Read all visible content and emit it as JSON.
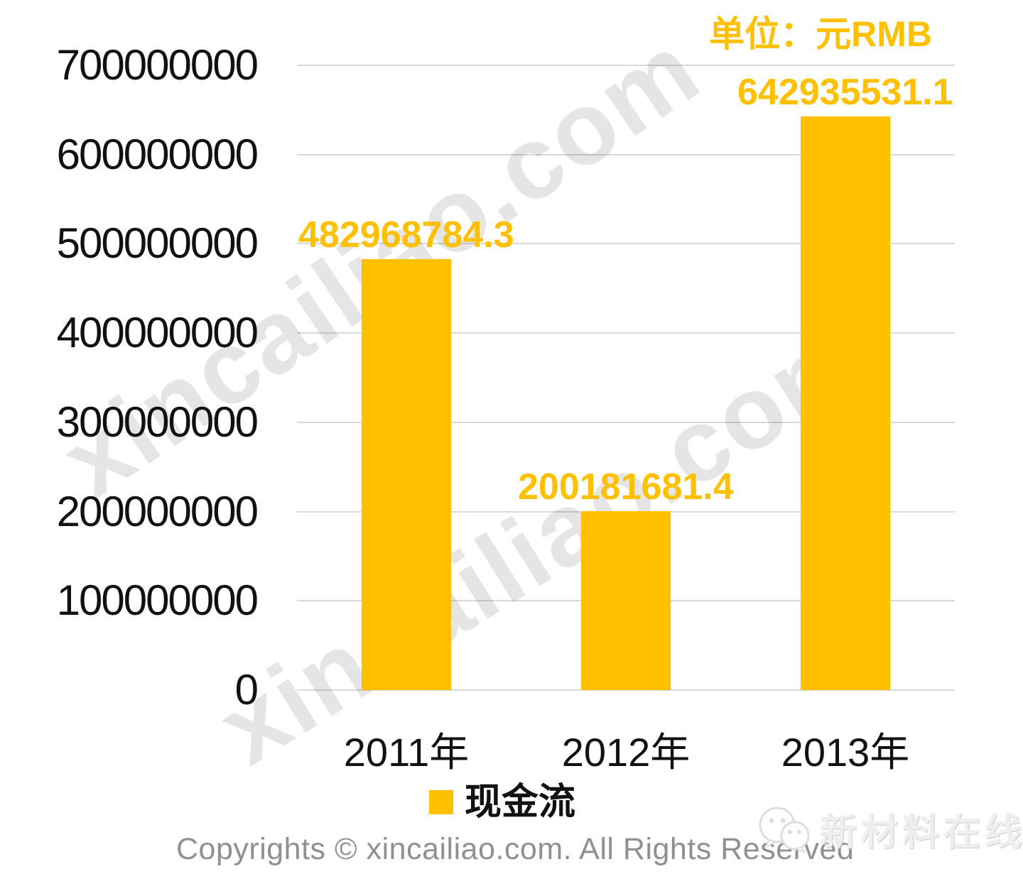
{
  "page": {
    "background": "#ffffff"
  },
  "header": {
    "unit_label": "单位：元RMB"
  },
  "chart_data": {
    "type": "bar",
    "title": "",
    "xlabel": "",
    "ylabel": "",
    "categories": [
      "2011年",
      "2012年",
      "2013年"
    ],
    "series": [
      {
        "name": "现金流",
        "values": [
          482968784.3,
          200181681.4,
          642935531.1
        ]
      }
    ],
    "data_labels": [
      "482968784.3",
      "200181681.4",
      "642935531.1"
    ],
    "y_tick_labels": [
      "700000000",
      "600000000",
      "500000000",
      "400000000",
      "300000000",
      "200000000",
      "100000000",
      "0"
    ],
    "ylim": [
      0,
      700000000
    ],
    "grid": true,
    "legend_position": "bottom",
    "unit": "元RMB",
    "colors": {
      "bar": "#FFC000",
      "data_label": "#FFC000",
      "unit_label": "#FFC000",
      "axis_text": "#111111",
      "gridline": "#d9d9d9"
    }
  },
  "legend": {
    "items": [
      {
        "label": "现金流",
        "color": "#FFC000"
      }
    ]
  },
  "watermark": {
    "text": "xincailiao.com"
  },
  "footer": {
    "copyright": "Copyrights © xincailiao.com. All Rights Reserved"
  },
  "logo": {
    "text": "新材料在线",
    "icon": "chat-bubbles-icon"
  }
}
